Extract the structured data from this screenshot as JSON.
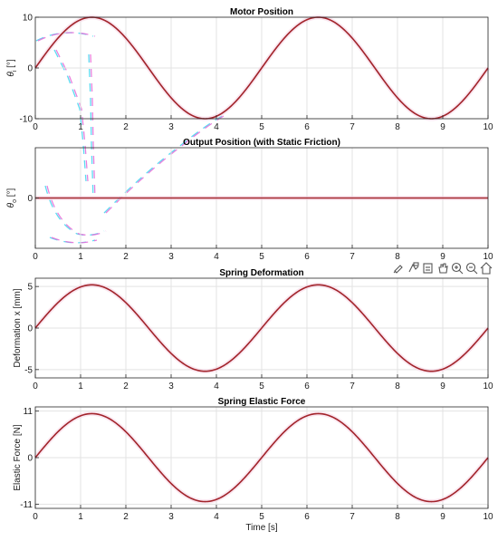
{
  "toolbar": {
    "icons": [
      "brush-icon",
      "data-tips-icon",
      "export-icon",
      "pan-icon",
      "zoom-in-icon",
      "zoom-out-icon",
      "home-icon"
    ]
  },
  "chart_data": [
    {
      "type": "line",
      "title": "Motor Position",
      "ylabel_main": "θ",
      "ylabel_sub": "i",
      "ylabel_unit": " [°]",
      "xlim": [
        0,
        10
      ],
      "ylim": [
        -10,
        10
      ],
      "xticks": [
        0,
        1,
        2,
        3,
        4,
        5,
        6,
        7,
        8,
        9,
        10
      ],
      "yticks": [
        -10,
        0,
        10
      ],
      "ytick_labels": [
        "-10",
        "0",
        "10"
      ],
      "grid": true,
      "series": [
        {
          "amplitude": 10,
          "period_s": 5,
          "x": [
            0,
            1.25,
            3.75,
            6.25,
            8.75,
            10
          ],
          "values": [
            0,
            10,
            -10,
            10,
            -10,
            0
          ]
        }
      ]
    },
    {
      "type": "line",
      "title": "Output Position (with Static Friction)",
      "ylabel_main": "θ",
      "ylabel_sub": "o",
      "ylabel_unit": " [°]",
      "xlim": [
        0,
        10
      ],
      "ylim": [
        -1,
        1
      ],
      "xticks": [
        0,
        1,
        2,
        3,
        4,
        5,
        6,
        7,
        8,
        9,
        10
      ],
      "yticks": [
        0
      ],
      "ytick_labels": [
        "0"
      ],
      "grid": true,
      "series": [
        {
          "amplitude": 0,
          "period_s": 5,
          "x": [
            0,
            10
          ],
          "values": [
            0,
            0
          ]
        }
      ]
    },
    {
      "type": "line",
      "title": "Spring Deformation",
      "ylabel": "Deformation x [mm]",
      "xlim": [
        0,
        10
      ],
      "ylim": [
        -6,
        6
      ],
      "xticks": [
        0,
        1,
        2,
        3,
        4,
        5,
        6,
        7,
        8,
        9,
        10
      ],
      "yticks": [
        -5,
        0,
        5
      ],
      "ytick_labels": [
        "-5",
        "0",
        "5"
      ],
      "grid": true,
      "series": [
        {
          "amplitude": 5.2,
          "period_s": 5,
          "x": [
            0,
            1.25,
            3.75,
            6.25,
            8.75,
            10
          ],
          "values": [
            0,
            5.2,
            -5.2,
            5.2,
            -5.2,
            0
          ]
        }
      ]
    },
    {
      "type": "line",
      "title": "Spring Elastic Force",
      "ylabel": "Elastic Force [N]",
      "xlabel": "Time [s]",
      "xlim": [
        0,
        10
      ],
      "ylim": [
        -12,
        12
      ],
      "xticks": [
        0,
        1,
        2,
        3,
        4,
        5,
        6,
        7,
        8,
        9,
        10
      ],
      "yticks": [
        -11,
        0,
        11
      ],
      "ytick_labels": [
        "-11",
        "0",
        "11"
      ],
      "grid": true,
      "series": [
        {
          "amplitude": 10.4,
          "period_s": 5,
          "x": [
            0,
            1.25,
            3.75,
            6.25,
            8.75,
            10
          ],
          "values": [
            0,
            10.4,
            -10.4,
            10.4,
            -10.4,
            0
          ]
        }
      ]
    }
  ]
}
